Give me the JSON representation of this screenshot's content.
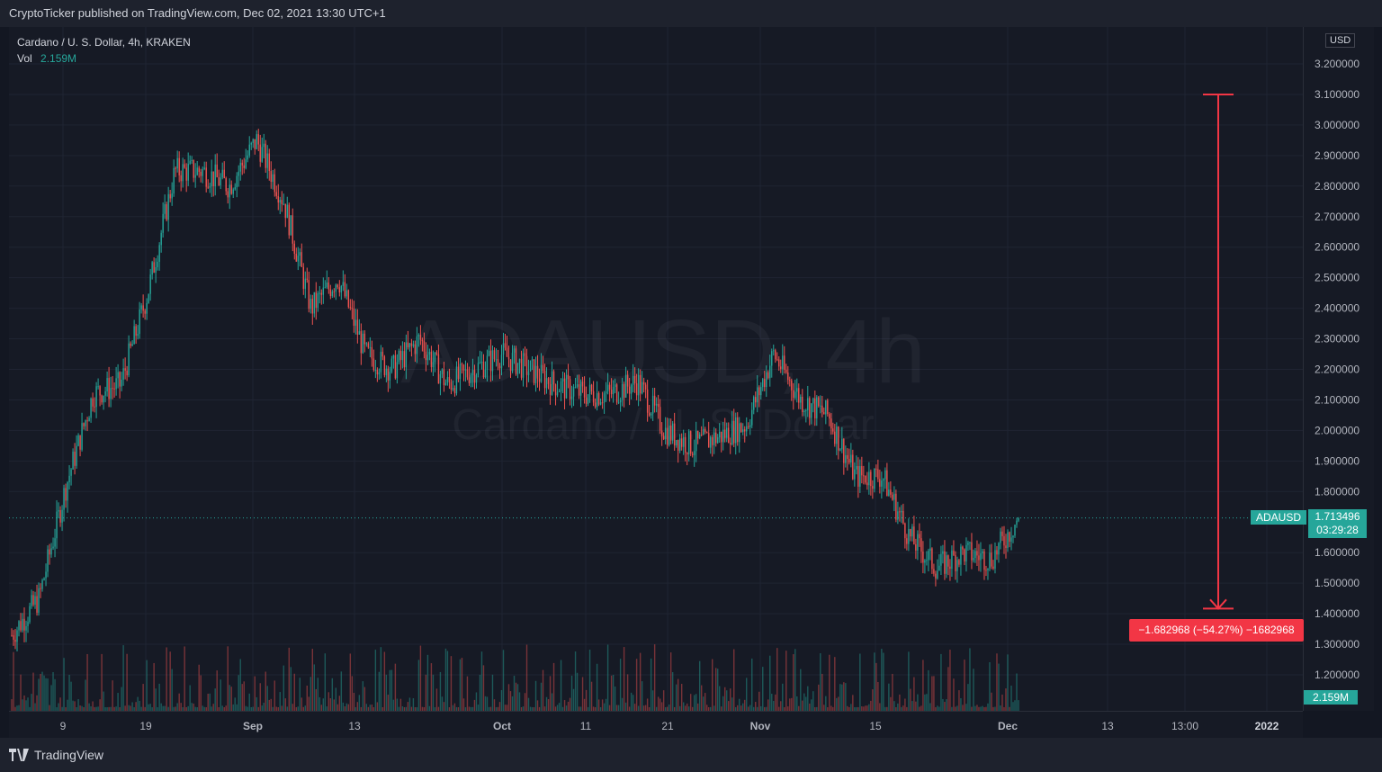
{
  "header": {
    "published_text": "CryptoTicker published on TradingView.com, Dec 02, 2021 13:30 UTC+1"
  },
  "legend": {
    "symbol_line": "Cardano / U. S. Dollar, 4h, KRAKEN",
    "vol_label": "Vol",
    "vol_value": "2.159M"
  },
  "watermark": {
    "symbol": "ADAUSD, 4h",
    "name": "Cardano / U. S. Dollar"
  },
  "price_scale": {
    "currency": "USD",
    "last_price": "1.713496",
    "countdown": "03:29:28",
    "symbol_tag": "ADAUSD",
    "volume_tag": "2.159M"
  },
  "measure": {
    "label": "−1.682968 (−54.27%) −1682968",
    "from_price": 3.1,
    "to_price": 1.417
  },
  "footer": {
    "brand": "TradingView"
  },
  "colors": {
    "up": "#26a69a",
    "down": "#ef5350",
    "background": "#161a25",
    "measure": "#f23645"
  },
  "chart_data": {
    "type": "candlestick",
    "title": "Cardano / U. S. Dollar, 4h, KRAKEN",
    "y_axis": {
      "ticks": [
        "3.200000",
        "3.100000",
        "3.000000",
        "2.900000",
        "2.800000",
        "2.700000",
        "2.600000",
        "2.500000",
        "2.400000",
        "2.300000",
        "2.200000",
        "2.100000",
        "2.000000",
        "1.900000",
        "1.800000",
        "1.600000",
        "1.500000",
        "1.400000",
        "1.300000",
        "1.200000"
      ],
      "ylim": [
        1.1,
        3.3
      ]
    },
    "x_axis": {
      "ticks": [
        "9",
        "19",
        "Sep",
        "13",
        "Oct",
        "11",
        "21",
        "Nov",
        "15",
        "Dec",
        "13",
        "13:00",
        "2022"
      ]
    },
    "series": [
      {
        "name": "ADAUSD",
        "x": [
          "Aug 01",
          "Aug 05",
          "Aug 09",
          "Aug 12",
          "Aug 16",
          "Aug 19",
          "Aug 23",
          "Aug 27",
          "Aug 31",
          "Sep 02",
          "Sep 06",
          "Sep 09",
          "Sep 13",
          "Sep 16",
          "Sep 20",
          "Sep 23",
          "Sep 27",
          "Oct 01",
          "Oct 05",
          "Oct 08",
          "Oct 11",
          "Oct 14",
          "Oct 18",
          "Oct 21",
          "Oct 25",
          "Oct 28",
          "Nov 01",
          "Nov 04",
          "Nov 08",
          "Nov 10",
          "Nov 12",
          "Nov 15",
          "Nov 18",
          "Nov 21",
          "Nov 24",
          "Nov 27",
          "Nov 30",
          "Dec 02"
        ],
        "values": [
          1.33,
          1.45,
          1.82,
          2.12,
          2.15,
          2.45,
          2.85,
          2.85,
          2.8,
          2.95,
          2.75,
          2.4,
          2.5,
          2.25,
          2.2,
          2.3,
          2.15,
          2.2,
          2.25,
          2.2,
          2.15,
          2.12,
          2.12,
          2.16,
          2.0,
          1.95,
          1.98,
          2.02,
          2.25,
          2.1,
          2.05,
          1.85,
          1.85,
          1.65,
          1.55,
          1.6,
          1.58,
          1.713496
        ]
      }
    ],
    "last_price": 1.713496,
    "last_volume": "2.159M",
    "grid": true
  }
}
